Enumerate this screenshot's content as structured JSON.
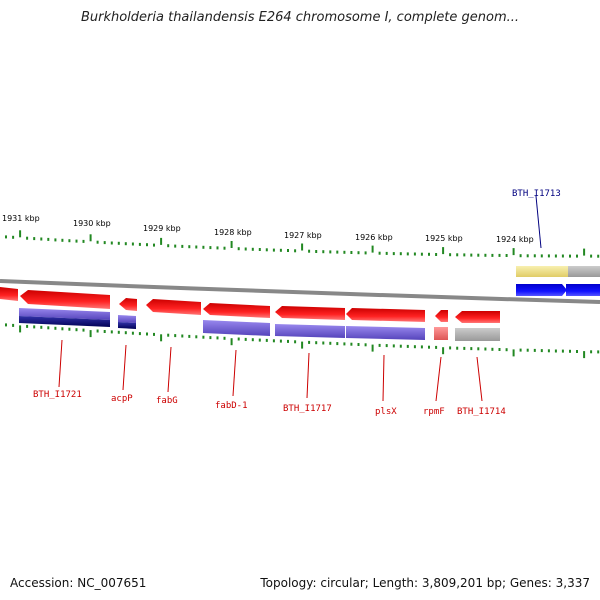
{
  "title": "Burkholderia thailandensis E264 chromosome I, complete genom...",
  "ruler_ticks": [
    {
      "label": "1931 kbp"
    },
    {
      "label": "1930 kbp"
    },
    {
      "label": "1929 kbp"
    },
    {
      "label": "1928 kbp"
    },
    {
      "label": "1927 kbp"
    },
    {
      "label": "1926 kbp"
    },
    {
      "label": "1925 kbp"
    },
    {
      "label": "1924 kbp"
    }
  ],
  "gene_labels": [
    {
      "name": "BTH_I1713",
      "color": "#000080"
    },
    {
      "name": "BTH_I1721",
      "color": "#cc0000"
    },
    {
      "name": "acpP",
      "color": "#cc0000"
    },
    {
      "name": "fabG",
      "color": "#cc0000"
    },
    {
      "name": "fabD-1",
      "color": "#cc0000"
    },
    {
      "name": "BTH_I1717",
      "color": "#cc0000"
    },
    {
      "name": "plsX",
      "color": "#cc0000"
    },
    {
      "name": "rpmF",
      "color": "#cc0000"
    },
    {
      "name": "BTH_I1714",
      "color": "#cc0000"
    }
  ],
  "colors": {
    "reverse_strand_gene": "#ee1111",
    "forward_strand_gene": "#1111ee",
    "cds_purple": "#7766cc",
    "cds_navy": "#000066",
    "rna_gray": "#aaaaaa",
    "rna_yellow": "#eedd88",
    "rrna_pink": "#ee7777",
    "ticks": "#228822",
    "backbone": "#888888"
  },
  "footer": {
    "accession": "Accession: NC_007651",
    "summary": "Topology: circular; Length: 3,809,201 bp; Genes: 3,337"
  }
}
